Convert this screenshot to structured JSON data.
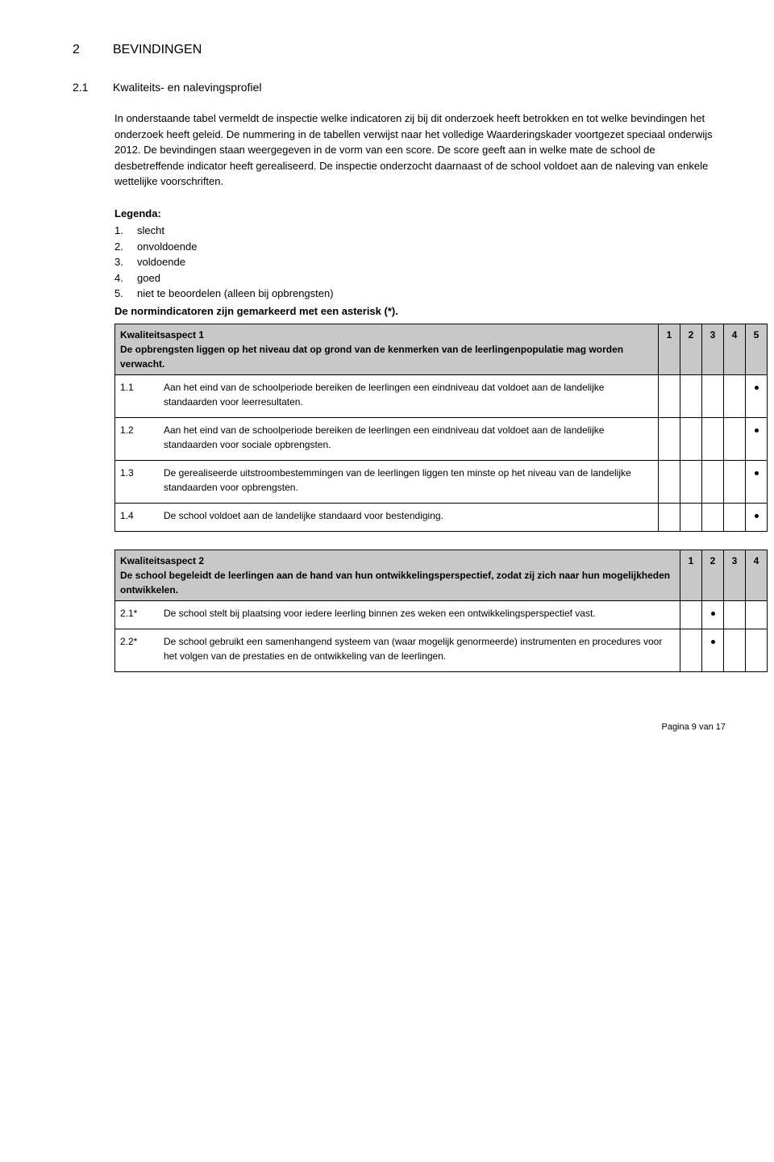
{
  "chapter": {
    "num": "2",
    "title": "BEVINDINGEN"
  },
  "section": {
    "num": "2.1",
    "title": "Kwaliteits- en nalevingsprofiel"
  },
  "intro": "In onderstaande tabel vermeldt de inspectie welke indicatoren zij bij dit onderzoek heeft betrokken en tot welke bevindingen het onderzoek heeft geleid. De nummering in de tabellen verwijst naar het volledige Waarderingskader voortgezet speciaal onderwijs 2012. De bevindingen staan weergegeven in de vorm van een score. De score geeft aan in welke mate de school de desbetreffende indicator heeft gerealiseerd. De inspectie onderzocht daarnaast of de school voldoet aan de naleving van enkele wettelijke voorschriften.",
  "legenda": {
    "title": "Legenda:",
    "items": [
      {
        "n": "1.",
        "label": "slecht"
      },
      {
        "n": "2.",
        "label": "onvoldoende"
      },
      {
        "n": "3.",
        "label": "voldoende"
      },
      {
        "n": "4.",
        "label": "goed"
      },
      {
        "n": "5.",
        "label": "niet te beoordelen (alleen bij opbrengsten)"
      }
    ]
  },
  "norm_note": "De normindicatoren zijn gemarkeerd met een asterisk (*).",
  "aspect1": {
    "header": "Kwaliteitsaspect 1\nDe opbrengsten liggen op het niveau dat op grond van de kenmerken van de leerlingenpopulatie mag worden verwacht.",
    "cols": [
      "1",
      "2",
      "3",
      "4",
      "5"
    ],
    "rows": [
      {
        "idx": "1.1",
        "text": "Aan het eind van de schoolperiode bereiken de leerlingen een eindniveau dat voldoet aan de landelijke standaarden voor leerresultaten.",
        "mark": 5
      },
      {
        "idx": "1.2",
        "text": "Aan het eind van de schoolperiode bereiken de leerlingen een eindniveau dat voldoet aan de landelijke standaarden voor sociale opbrengsten.",
        "mark": 5
      },
      {
        "idx": "1.3",
        "text": "De gerealiseerde uitstroombestemmingen van de leerlingen liggen ten minste op het niveau van de landelijke standaarden voor opbrengsten.",
        "mark": 5
      },
      {
        "idx": "1.4",
        "text": "De school voldoet aan de landelijke standaard voor bestendiging.",
        "mark": 5
      }
    ]
  },
  "aspect2": {
    "header": "Kwaliteitsaspect 2\nDe school begeleidt de leerlingen aan de hand van hun ontwikkelingsperspectief, zodat zij zich naar hun mogelijkheden ontwikkelen.",
    "cols": [
      "1",
      "2",
      "3",
      "4"
    ],
    "rows": [
      {
        "idx": "2.1*",
        "text": "De school stelt bij plaatsing voor iedere leerling binnen zes weken een ontwikkelingsperspectief vast.",
        "mark": 2
      },
      {
        "idx": "2.2*",
        "text": "De school gebruikt een samenhangend systeem van (waar mogelijk genormeerde) instrumenten en procedures voor het volgen van de prestaties en de ontwikkeling van de leerlingen.",
        "mark": 2
      }
    ]
  },
  "footer": "Pagina 9 van 17"
}
